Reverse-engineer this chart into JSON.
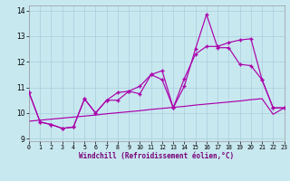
{
  "xlabel": "Windchill (Refroidissement éolien,°C)",
  "bg_color": "#c8e8f0",
  "grid_color": "#aaccdd",
  "line_color": "#aa00aa",
  "xlim": [
    0,
    23
  ],
  "ylim": [
    8.9,
    14.2
  ],
  "yticks": [
    9,
    10,
    11,
    12,
    13,
    14
  ],
  "xticks": [
    0,
    1,
    2,
    3,
    4,
    5,
    6,
    7,
    8,
    9,
    10,
    11,
    12,
    13,
    14,
    15,
    16,
    17,
    18,
    19,
    20,
    21,
    22,
    23
  ],
  "line1_x": [
    0,
    1,
    2,
    3,
    4,
    5,
    6,
    7,
    8,
    9,
    10,
    11,
    12,
    13,
    14,
    15,
    16,
    17,
    18,
    19,
    20,
    21,
    22,
    23
  ],
  "line1_y": [
    10.8,
    9.65,
    9.55,
    9.4,
    9.45,
    10.55,
    10.0,
    10.5,
    10.5,
    10.85,
    10.75,
    11.5,
    11.3,
    10.2,
    11.05,
    12.5,
    13.85,
    12.55,
    12.55,
    11.9,
    11.85,
    11.3,
    10.2,
    10.2
  ],
  "line2_x": [
    0,
    1,
    2,
    3,
    4,
    5,
    6,
    7,
    8,
    9,
    10,
    11,
    12,
    13,
    14,
    15,
    16,
    17,
    18,
    19,
    20,
    21,
    22,
    23
  ],
  "line2_y": [
    10.8,
    9.65,
    9.55,
    9.4,
    9.45,
    10.55,
    10.0,
    10.5,
    10.8,
    10.85,
    11.05,
    11.5,
    11.65,
    10.2,
    11.35,
    12.3,
    12.6,
    12.6,
    12.75,
    12.85,
    12.9,
    11.3,
    10.2,
    10.2
  ],
  "line3_x": [
    0,
    1,
    2,
    3,
    4,
    5,
    6,
    7,
    8,
    9,
    10,
    11,
    12,
    13,
    14,
    15,
    16,
    17,
    18,
    19,
    20,
    21,
    22,
    23
  ],
  "line3_y": [
    9.68,
    9.72,
    9.76,
    9.8,
    9.84,
    9.88,
    9.92,
    9.97,
    10.01,
    10.05,
    10.09,
    10.14,
    10.18,
    10.22,
    10.26,
    10.31,
    10.35,
    10.39,
    10.43,
    10.47,
    10.52,
    10.56,
    9.95,
    10.2
  ]
}
